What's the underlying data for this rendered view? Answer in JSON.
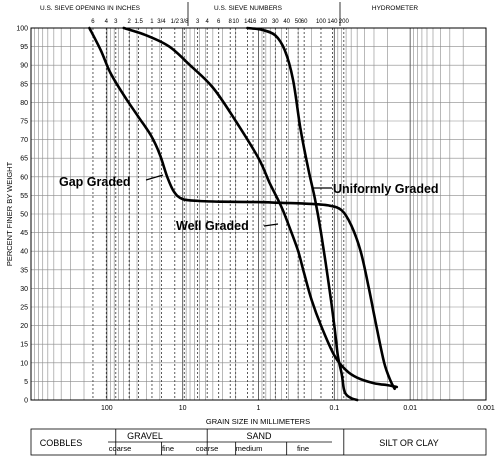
{
  "chart_data": {
    "type": "line",
    "xlabel": "GRAIN SIZE IN MILLIMETERS",
    "ylabel": "PERCENT FINER BY WEIGHT",
    "x_scale": "log",
    "x_reversed": true,
    "xlim": [
      1000,
      0.001
    ],
    "ylim": [
      0,
      100
    ],
    "x_ticks": [
      "100",
      "10",
      "1",
      "0.1",
      "0.01",
      "0.001"
    ],
    "y_ticks": [
      "100",
      "95",
      "90",
      "85",
      "80",
      "75",
      "70",
      "65",
      "60",
      "55",
      "50",
      "45",
      "40",
      "35",
      "30",
      "25",
      "20",
      "15",
      "10",
      "5",
      "0"
    ],
    "grid": true,
    "header": {
      "left_title": "U.S. SIEVE OPENING IN INCHES",
      "middle_title": "U.S. SIEVE NUMBERS",
      "right_title": "HYDROMETER",
      "inch_sieves": [
        {
          "label": "6",
          "mm": 152.4
        },
        {
          "label": "4",
          "mm": 101.6
        },
        {
          "label": "3",
          "mm": 76.2
        },
        {
          "label": "2",
          "mm": 50.8
        },
        {
          "label": "1.5",
          "mm": 38.1
        },
        {
          "label": "1",
          "mm": 25.4
        },
        {
          "label": "3/4",
          "mm": 19.05
        },
        {
          "label": "1/2",
          "mm": 12.7
        },
        {
          "label": "3/8",
          "mm": 9.525
        }
      ],
      "number_sieves": [
        {
          "label": "3",
          "mm": 6.35
        },
        {
          "label": "4",
          "mm": 4.75
        },
        {
          "label": "6",
          "mm": 3.35
        },
        {
          "label": "8",
          "mm": 2.36
        },
        {
          "label": "10",
          "mm": 2.0
        },
        {
          "label": "14",
          "mm": 1.4
        },
        {
          "label": "16",
          "mm": 1.18
        },
        {
          "label": "20",
          "mm": 0.85
        },
        {
          "label": "30",
          "mm": 0.6
        },
        {
          "label": "40",
          "mm": 0.425
        },
        {
          "label": "50",
          "mm": 0.3
        },
        {
          "label": "60",
          "mm": 0.25
        },
        {
          "label": "100",
          "mm": 0.15
        },
        {
          "label": "140",
          "mm": 0.106
        },
        {
          "label": "200",
          "mm": 0.075
        }
      ]
    },
    "series": [
      {
        "name": "Gap Graded",
        "points": [
          [
            170,
            100
          ],
          [
            120,
            94
          ],
          [
            90,
            88
          ],
          [
            60,
            82
          ],
          [
            38,
            76
          ],
          [
            26,
            71
          ],
          [
            20,
            66
          ],
          [
            16,
            60
          ],
          [
            13,
            56
          ],
          [
            10,
            54
          ],
          [
            6,
            53.5
          ],
          [
            3,
            53.3
          ],
          [
            1,
            53.2
          ],
          [
            0.5,
            53
          ],
          [
            0.25,
            52.8
          ],
          [
            0.12,
            52.3
          ],
          [
            0.08,
            51
          ],
          [
            0.06,
            47
          ],
          [
            0.045,
            40
          ],
          [
            0.035,
            30
          ],
          [
            0.028,
            20
          ],
          [
            0.022,
            10
          ],
          [
            0.018,
            5
          ],
          [
            0.016,
            3
          ]
        ]
      },
      {
        "name": "Well Graded",
        "points": [
          [
            60,
            100
          ],
          [
            30,
            98
          ],
          [
            15,
            95
          ],
          [
            8,
            90
          ],
          [
            4,
            84
          ],
          [
            2,
            75
          ],
          [
            1,
            65
          ],
          [
            0.7,
            58
          ],
          [
            0.5,
            52
          ],
          [
            0.4,
            47
          ],
          [
            0.3,
            40
          ],
          [
            0.25,
            34
          ],
          [
            0.2,
            27
          ],
          [
            0.15,
            20
          ],
          [
            0.1,
            12
          ],
          [
            0.07,
            8
          ],
          [
            0.05,
            6
          ],
          [
            0.03,
            4.5
          ],
          [
            0.02,
            4
          ],
          [
            0.015,
            3.5
          ]
        ]
      },
      {
        "name": "Uniformly Graded",
        "points": [
          [
            1.4,
            100
          ],
          [
            0.9,
            99.5
          ],
          [
            0.6,
            98
          ],
          [
            0.45,
            94
          ],
          [
            0.35,
            86
          ],
          [
            0.28,
            73
          ],
          [
            0.22,
            62
          ],
          [
            0.18,
            54
          ],
          [
            0.15,
            45
          ],
          [
            0.12,
            32
          ],
          [
            0.1,
            20
          ],
          [
            0.09,
            12
          ],
          [
            0.08,
            7
          ],
          [
            0.075,
            3
          ],
          [
            0.07,
            1.5
          ],
          [
            0.06,
            0.5
          ],
          [
            0.05,
            0
          ]
        ]
      }
    ],
    "annotations": [
      {
        "text": "Gap Graded",
        "series": "Gap Graded"
      },
      {
        "text": "Uniformly Graded",
        "series": "Uniformly Graded"
      },
      {
        "text": "Well Graded",
        "series": "Well Graded"
      }
    ]
  },
  "classification_table": {
    "cobbles": "COBBLES",
    "gravel": "GRAVEL",
    "gravel_coarse": "coarse",
    "gravel_fine": "fine",
    "sand": "SAND",
    "sand_coarse": "coarse",
    "sand_medium": "medium",
    "sand_fine": "fine",
    "silt_clay": "SILT OR CLAY",
    "bounds_mm": {
      "cobbles_gravel": 76.2,
      "gravel_split": 19.05,
      "gravel_sand": 4.75,
      "sand_coarse_medium": 2.0,
      "sand_medium_fine": 0.425,
      "sand_silt": 0.075
    }
  }
}
